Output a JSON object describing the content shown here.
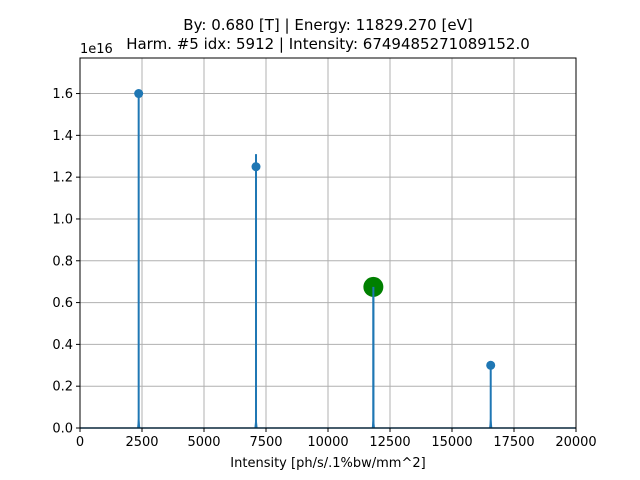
{
  "chart_data": {
    "type": "line",
    "title_line1": "By: 0.680 [T] | Energy: 11829.270 [eV]",
    "title_line2": "Harm. #5 idx: 5912 | Intensity: 6749485271089152.0",
    "xlabel": "Intensity [ph/s/.1%bw/mm^2]",
    "ylabel": "",
    "y_offset_label": "1e16",
    "xlim": [
      0,
      20000
    ],
    "ylim": [
      0,
      1.77
    ],
    "x_ticks": [
      0,
      2500,
      5000,
      7500,
      10000,
      12500,
      15000,
      17500,
      20000
    ],
    "x_tick_labels": [
      "0",
      "2500",
      "5000",
      "7500",
      "10000",
      "12500",
      "15000",
      "17500",
      "20000"
    ],
    "y_ticks": [
      0.0,
      0.2,
      0.4,
      0.6,
      0.8,
      1.0,
      1.2,
      1.4,
      1.6
    ],
    "y_tick_labels": [
      "0.0",
      "0.2",
      "0.4",
      "0.6",
      "0.8",
      "1.0",
      "1.2",
      "1.4",
      "1.6"
    ],
    "grid": true,
    "colors": {
      "series": "#1f77b4",
      "highlight": "#008000",
      "grid": "#b0b0b0"
    },
    "series": [
      {
        "peaks": [
          {
            "x": 2366,
            "peak": 1.6,
            "marker": 1.6
          },
          {
            "x": 7097,
            "peak": 1.31,
            "marker": 1.25
          },
          {
            "x": 11829,
            "peak": 0.67,
            "marker": 0.67
          },
          {
            "x": 16561,
            "peak": 0.31,
            "marker": 0.3
          }
        ]
      }
    ],
    "highlight_point": {
      "x": 11829.27,
      "y": 0.6749
    }
  }
}
